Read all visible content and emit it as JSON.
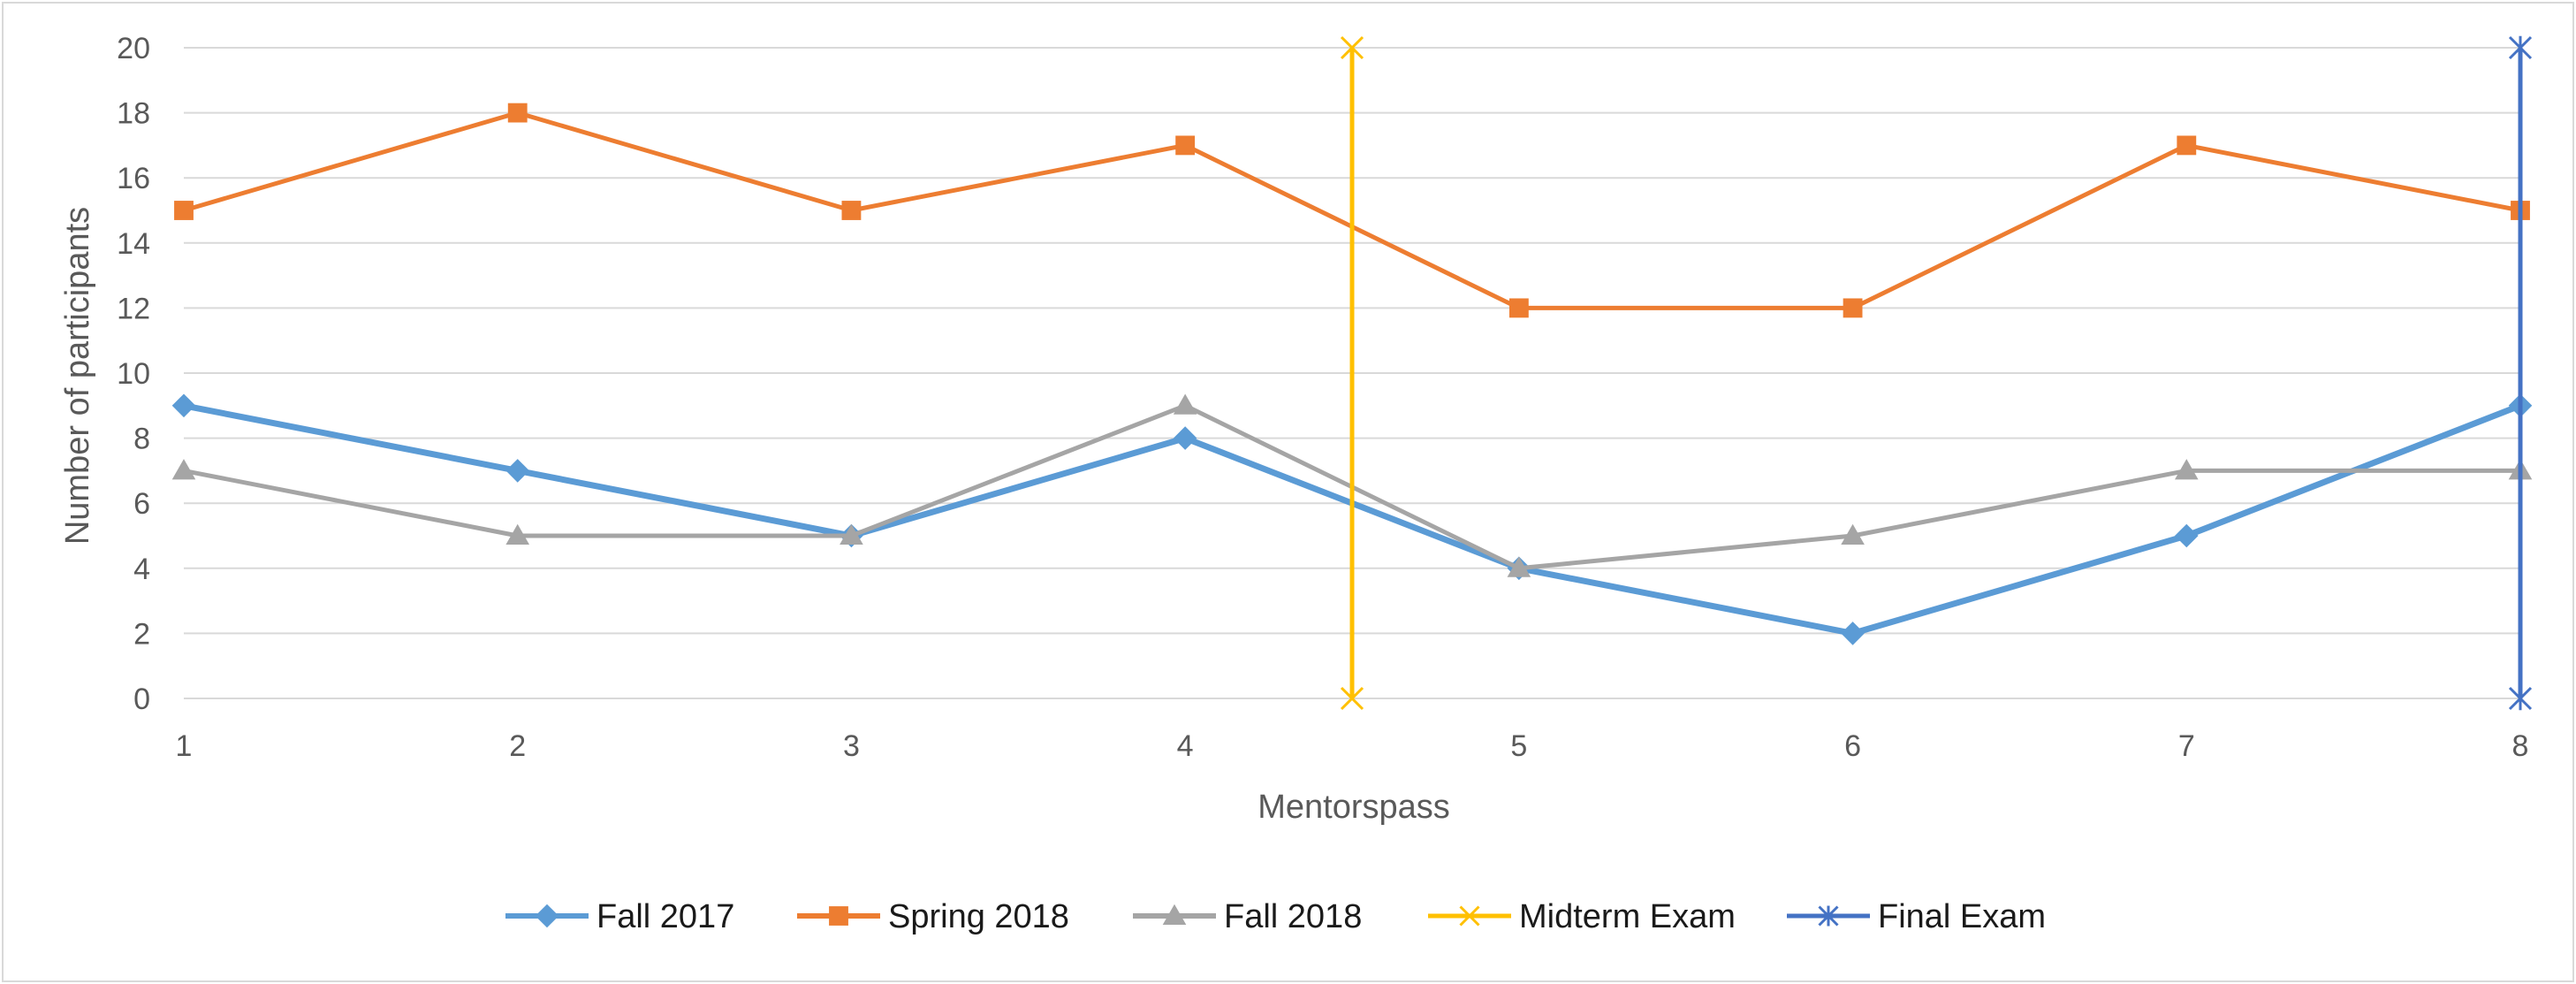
{
  "chart_data": {
    "type": "line",
    "title": "",
    "xlabel": "Mentorspass",
    "ylabel": "Number of participants",
    "x": [
      1,
      2,
      3,
      4,
      5,
      6,
      7,
      8
    ],
    "xlim": [
      1,
      8
    ],
    "ylim": [
      0,
      20
    ],
    "yticks": [
      0,
      2,
      4,
      6,
      8,
      10,
      12,
      14,
      16,
      18,
      20
    ],
    "grid": "horizontal",
    "legend_position": "bottom",
    "series": [
      {
        "name": "Fall 2017",
        "values": [
          9,
          7,
          5,
          8,
          4,
          2,
          5,
          9
        ],
        "color": "#5b9bd5",
        "marker": "diamond"
      },
      {
        "name": "Spring 2018",
        "values": [
          15,
          18,
          15,
          17,
          12,
          12,
          17,
          15
        ],
        "color": "#ed7d31",
        "marker": "square"
      },
      {
        "name": "Fall 2018",
        "values": [
          7,
          5,
          5,
          9,
          4,
          5,
          7,
          7
        ],
        "color": "#a5a5a5",
        "marker": "triangle"
      }
    ],
    "reference_lines": [
      {
        "name": "Midterm Exam",
        "x": 4.5,
        "y_range": [
          0,
          20
        ],
        "color": "#ffc000",
        "marker": "x"
      },
      {
        "name": "Final Exam",
        "x": 8,
        "y_range": [
          0,
          20
        ],
        "color": "#4472c4",
        "marker": "star"
      }
    ]
  }
}
